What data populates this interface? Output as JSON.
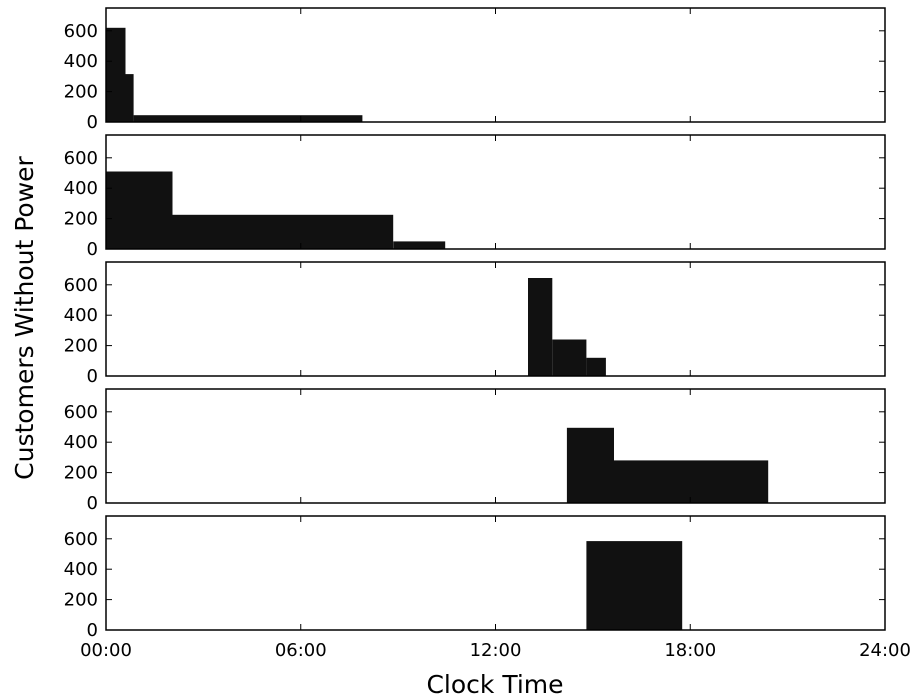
{
  "chart_data": {
    "type": "bar",
    "xlabel": "Clock Time",
    "ylabel": "Customers Without Power",
    "x_unit": "hours",
    "xlim": [
      0,
      24
    ],
    "x_tick_labels": [
      "00:00",
      "06:00",
      "12:00",
      "18:00",
      "24:00"
    ],
    "x_tick_values": [
      0,
      6,
      12,
      18,
      24
    ],
    "ylim": [
      0,
      750
    ],
    "y_tick_values": [
      0,
      200,
      400,
      600
    ],
    "y_tick_labels": [
      "0",
      "200",
      "400",
      "600"
    ],
    "bar_color": "#111111",
    "panels": [
      {
        "steps": [
          {
            "start": 0.0,
            "end": 0.6,
            "value": 620
          },
          {
            "start": 0.6,
            "end": 0.85,
            "value": 315
          },
          {
            "start": 0.85,
            "end": 7.9,
            "value": 45
          }
        ]
      },
      {
        "steps": [
          {
            "start": 0.0,
            "end": 2.05,
            "value": 510
          },
          {
            "start": 2.05,
            "end": 8.85,
            "value": 225
          },
          {
            "start": 8.85,
            "end": 10.45,
            "value": 50
          }
        ]
      },
      {
        "steps": [
          {
            "start": 13.0,
            "end": 13.75,
            "value": 645
          },
          {
            "start": 13.75,
            "end": 14.8,
            "value": 240
          },
          {
            "start": 14.8,
            "end": 15.4,
            "value": 120
          }
        ]
      },
      {
        "steps": [
          {
            "start": 14.2,
            "end": 15.65,
            "value": 495
          },
          {
            "start": 15.65,
            "end": 20.4,
            "value": 280
          }
        ]
      },
      {
        "steps": [
          {
            "start": 14.8,
            "end": 17.75,
            "value": 585
          }
        ]
      }
    ]
  }
}
